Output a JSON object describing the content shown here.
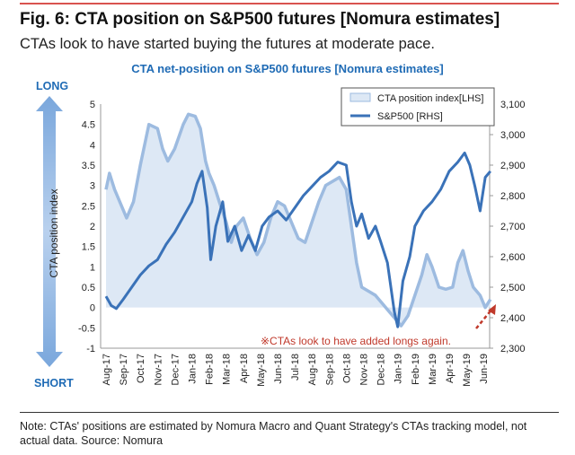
{
  "header": {
    "title": "Fig. 6: CTA position on S&P500 futures [Nomura estimates]",
    "subtitle": "CTAs look to have started buying the futures at moderate pace."
  },
  "labels": {
    "long": "LONG",
    "short": "SHORT"
  },
  "footer": {
    "note": "Note: CTAs' positions are estimated by Nomura Macro and Quant Strategy's CTAs tracking model, not actual data. Source: Nomura"
  },
  "chart_data": {
    "type": "area+line",
    "title": "CTA net-position on S&P500 futures  [Nomura estimates]",
    "ylabel": "CTA position index",
    "annotation": "※CTAs look to have added longs again.",
    "categories": [
      "Aug-17",
      "Sep-17",
      "Oct-17",
      "Nov-17",
      "Dec-17",
      "Jan-18",
      "Feb-18",
      "Mar-18",
      "Apr-18",
      "May-18",
      "Jun-18",
      "Jul-18",
      "Aug-18",
      "Sep-18",
      "Oct-18",
      "Nov-18",
      "Dec-18",
      "Jan-19",
      "Feb-19",
      "Mar-19",
      "Apr-19",
      "May-19",
      "Jun-19"
    ],
    "y_left": {
      "range": [
        -1,
        5
      ],
      "ticks": [
        "-1",
        "-0.5",
        "0",
        "0.5",
        "1",
        "1.5",
        "2",
        "2.5",
        "3",
        "3.5",
        "4",
        "4.5",
        "5"
      ]
    },
    "y_right": {
      "range": [
        2300,
        3100
      ],
      "ticks": [
        "2,300",
        "2,400",
        "2,500",
        "2,600",
        "2,700",
        "2,800",
        "2,900",
        "3,000",
        "3,100"
      ]
    },
    "legend": {
      "placement": "top-right"
    },
    "series": [
      {
        "name": "CTA position index[LHS]",
        "axis": "left",
        "color": "#9dbbe0",
        "fill": "#dde8f5",
        "points": [
          [
            0,
            2.9
          ],
          [
            0.2,
            3.3
          ],
          [
            0.5,
            2.9
          ],
          [
            1,
            2.4
          ],
          [
            1.2,
            2.2
          ],
          [
            1.6,
            2.6
          ],
          [
            2,
            3.5
          ],
          [
            2.3,
            4.1
          ],
          [
            2.5,
            4.5
          ],
          [
            3,
            4.4
          ],
          [
            3.3,
            3.9
          ],
          [
            3.6,
            3.6
          ],
          [
            4,
            3.9
          ],
          [
            4.5,
            4.5
          ],
          [
            4.8,
            4.75
          ],
          [
            5.2,
            4.7
          ],
          [
            5.5,
            4.4
          ],
          [
            5.8,
            3.6
          ],
          [
            6,
            3.3
          ],
          [
            6.3,
            3.0
          ],
          [
            6.6,
            2.6
          ],
          [
            7,
            2.1
          ],
          [
            7.3,
            1.6
          ],
          [
            7.6,
            2.0
          ],
          [
            8,
            2.2
          ],
          [
            8.4,
            1.7
          ],
          [
            8.8,
            1.3
          ],
          [
            9.2,
            1.6
          ],
          [
            9.6,
            2.2
          ],
          [
            10,
            2.6
          ],
          [
            10.4,
            2.5
          ],
          [
            10.8,
            2.1
          ],
          [
            11.2,
            1.7
          ],
          [
            11.6,
            1.6
          ],
          [
            12,
            2.1
          ],
          [
            12.4,
            2.6
          ],
          [
            12.8,
            3.0
          ],
          [
            13.2,
            3.1
          ],
          [
            13.6,
            3.2
          ],
          [
            14,
            2.9
          ],
          [
            14.3,
            2.0
          ],
          [
            14.6,
            1.1
          ],
          [
            14.9,
            0.5
          ],
          [
            15.3,
            0.4
          ],
          [
            15.7,
            0.3
          ],
          [
            16.1,
            0.1
          ],
          [
            16.5,
            -0.1
          ],
          [
            16.9,
            -0.3
          ],
          [
            17.2,
            -0.45
          ],
          [
            17.6,
            -0.2
          ],
          [
            18,
            0.3
          ],
          [
            18.4,
            0.8
          ],
          [
            18.7,
            1.3
          ],
          [
            19,
            1.0
          ],
          [
            19.4,
            0.5
          ],
          [
            19.8,
            0.45
          ],
          [
            20.2,
            0.5
          ],
          [
            20.5,
            1.1
          ],
          [
            20.8,
            1.4
          ],
          [
            21.1,
            0.9
          ],
          [
            21.4,
            0.5
          ],
          [
            21.8,
            0.3
          ],
          [
            22.1,
            0.0
          ],
          [
            22.4,
            0.2
          ]
        ]
      },
      {
        "name": "S&P500 [RHS]",
        "axis": "right",
        "color": "#3a72b8",
        "points": [
          [
            0,
            2470
          ],
          [
            0.3,
            2440
          ],
          [
            0.6,
            2430
          ],
          [
            1,
            2460
          ],
          [
            1.5,
            2500
          ],
          [
            2,
            2540
          ],
          [
            2.5,
            2570
          ],
          [
            3,
            2590
          ],
          [
            3.5,
            2640
          ],
          [
            4,
            2680
          ],
          [
            4.5,
            2730
          ],
          [
            5,
            2780
          ],
          [
            5.3,
            2840
          ],
          [
            5.6,
            2880
          ],
          [
            5.9,
            2760
          ],
          [
            6.1,
            2590
          ],
          [
            6.4,
            2700
          ],
          [
            6.8,
            2780
          ],
          [
            7.1,
            2650
          ],
          [
            7.5,
            2700
          ],
          [
            7.9,
            2620
          ],
          [
            8.3,
            2670
          ],
          [
            8.7,
            2620
          ],
          [
            9.1,
            2700
          ],
          [
            9.5,
            2730
          ],
          [
            10,
            2750
          ],
          [
            10.5,
            2720
          ],
          [
            11,
            2760
          ],
          [
            11.5,
            2800
          ],
          [
            12,
            2830
          ],
          [
            12.5,
            2860
          ],
          [
            13,
            2880
          ],
          [
            13.5,
            2910
          ],
          [
            14,
            2900
          ],
          [
            14.3,
            2780
          ],
          [
            14.6,
            2700
          ],
          [
            14.9,
            2740
          ],
          [
            15.3,
            2660
          ],
          [
            15.7,
            2700
          ],
          [
            16,
            2650
          ],
          [
            16.4,
            2580
          ],
          [
            16.8,
            2420
          ],
          [
            17,
            2370
          ],
          [
            17.3,
            2520
          ],
          [
            17.7,
            2600
          ],
          [
            18,
            2700
          ],
          [
            18.5,
            2750
          ],
          [
            19,
            2780
          ],
          [
            19.5,
            2820
          ],
          [
            20,
            2880
          ],
          [
            20.5,
            2910
          ],
          [
            20.9,
            2940
          ],
          [
            21.2,
            2900
          ],
          [
            21.5,
            2830
          ],
          [
            21.8,
            2750
          ],
          [
            22.1,
            2860
          ],
          [
            22.4,
            2880
          ]
        ]
      }
    ]
  }
}
